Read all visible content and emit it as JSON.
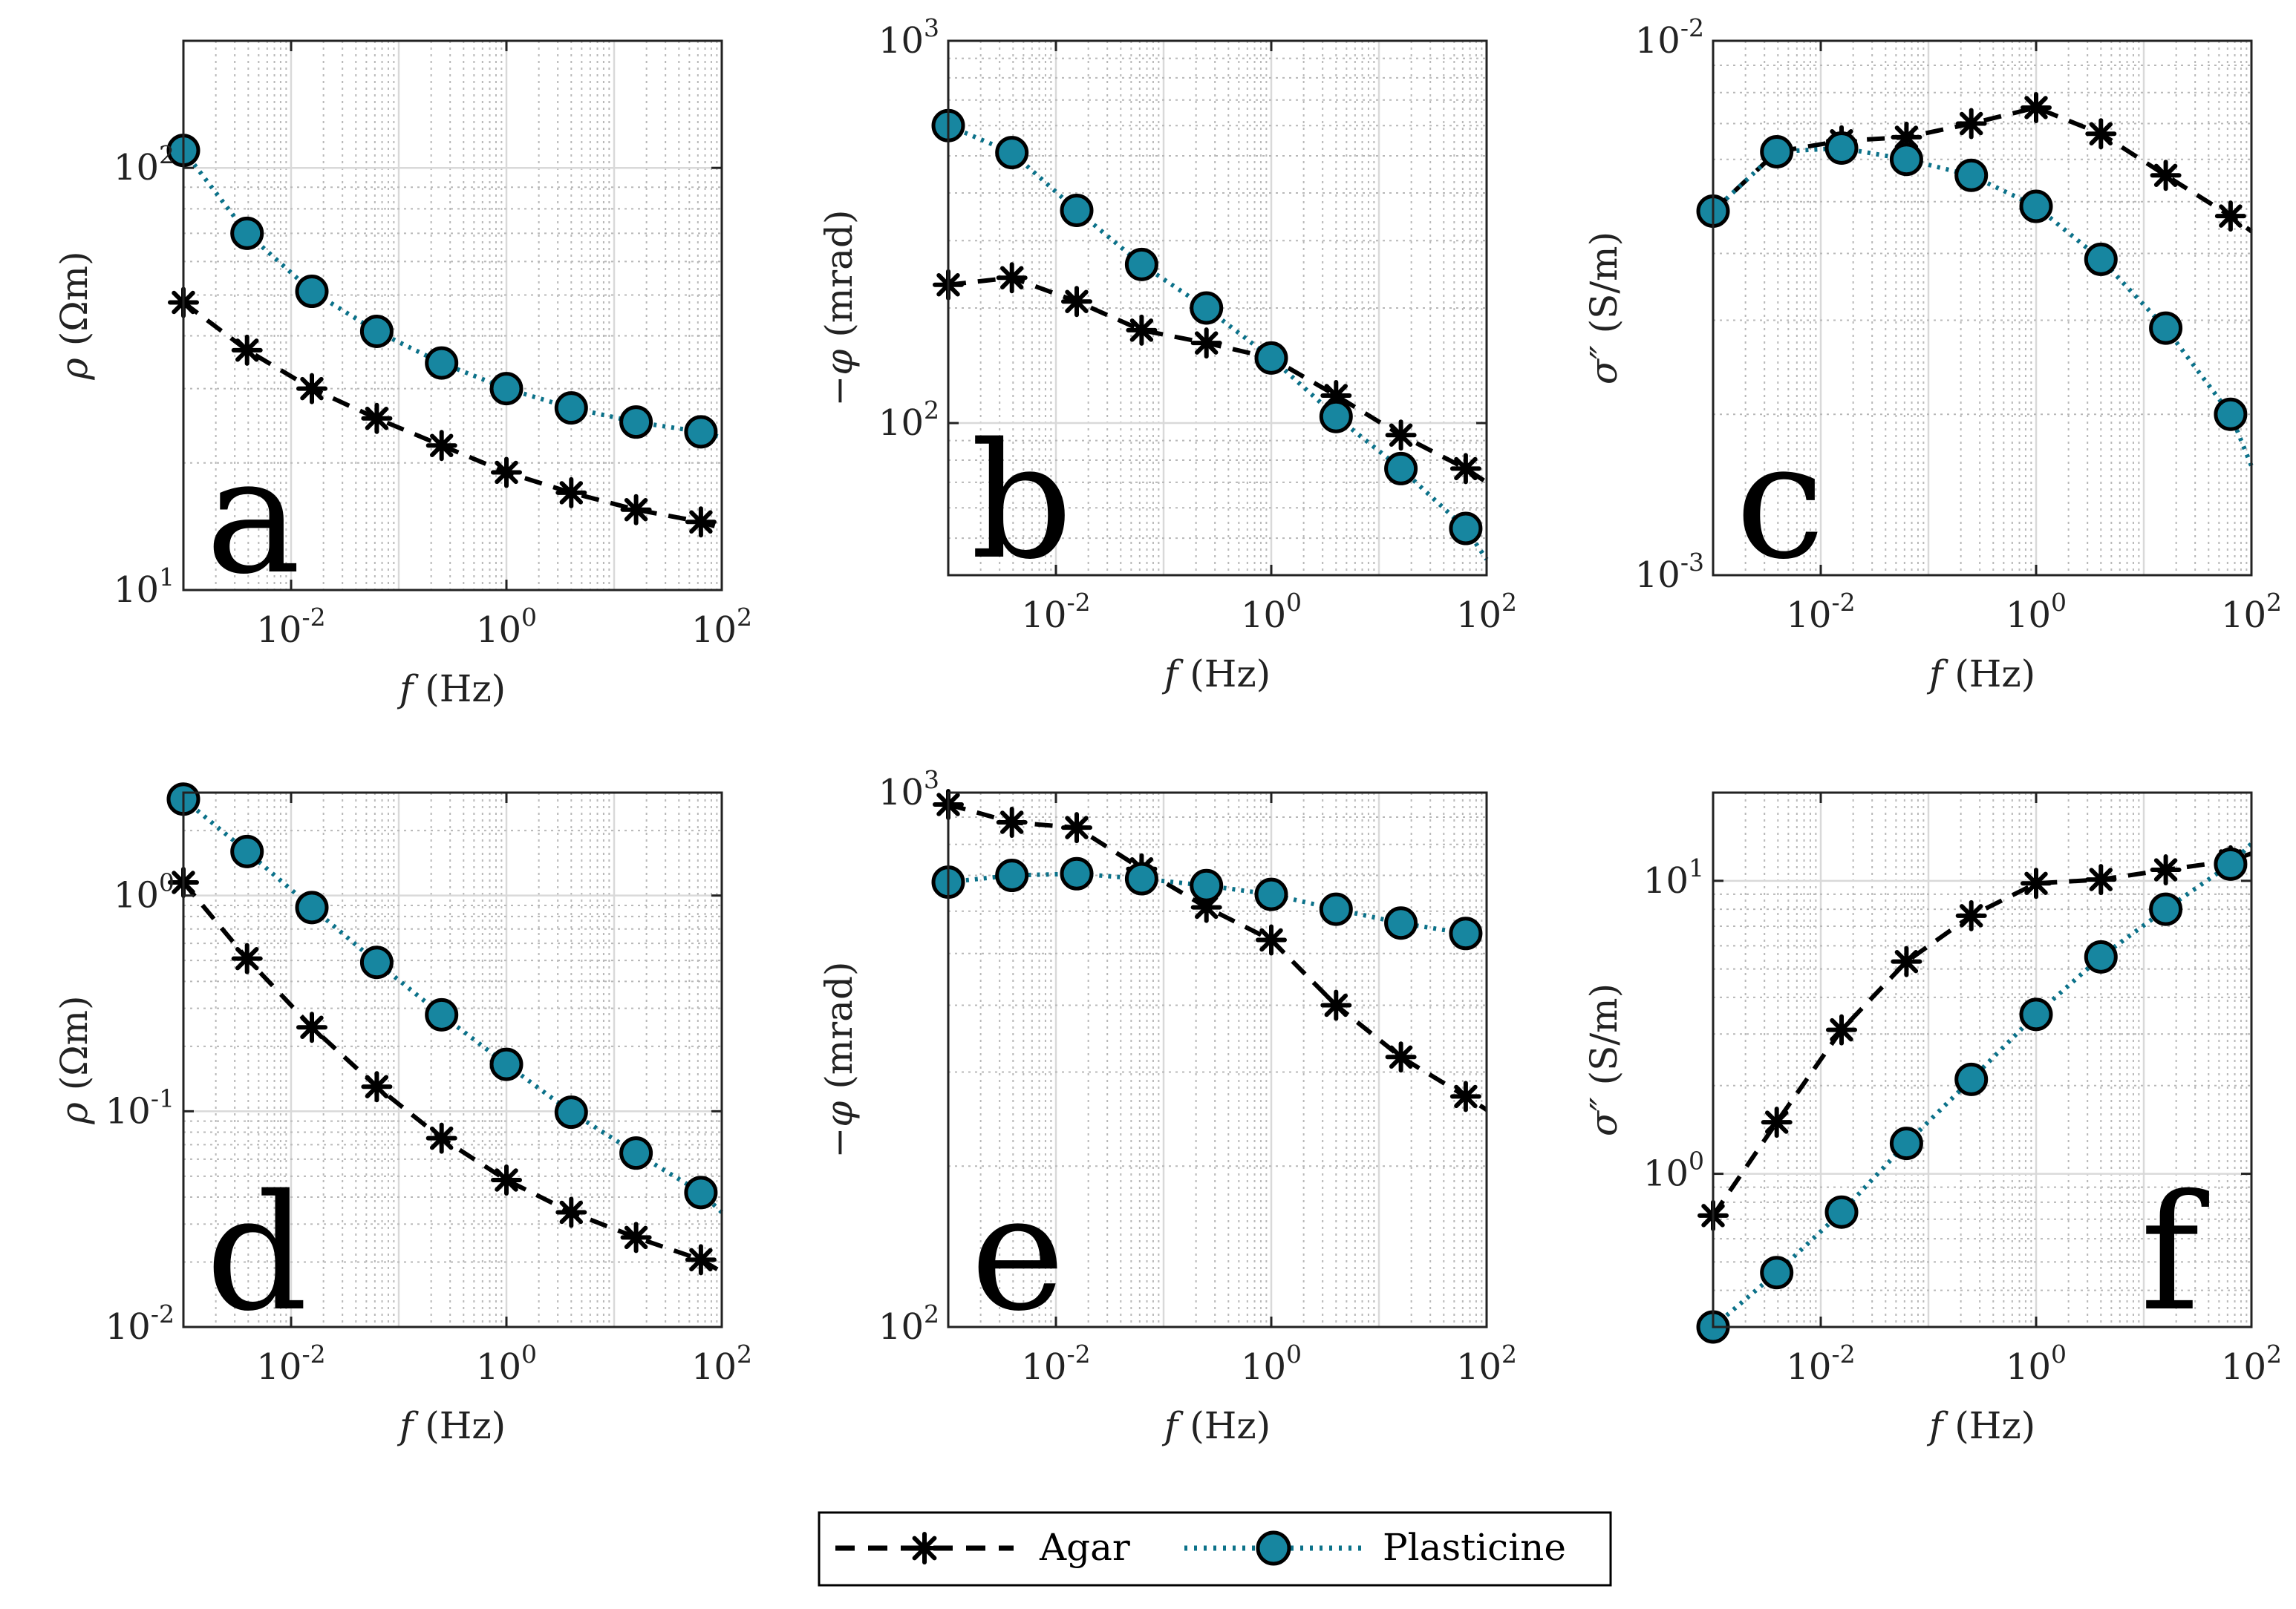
{
  "figure": {
    "legend": [
      {
        "label": "Agar",
        "style": "agar"
      },
      {
        "label": "Plasticine",
        "style": "plasticine"
      }
    ]
  },
  "styles": {
    "agar": {
      "color": "#000000",
      "line": "dashed",
      "marker": "asterisk"
    },
    "plasticine": {
      "color": "#0B7189",
      "fill": "#1786A0",
      "line": "dotted",
      "marker": "circle"
    }
  },
  "chart_data": [
    {
      "id": "a",
      "type": "line",
      "panel_label": "a",
      "xlabel_var": "f",
      "xlabel_unit": "(Hz)",
      "ylabel_var": "ρ",
      "ylabel_unit": "(Ωm)",
      "xlim": [
        0.001,
        100
      ],
      "ylim": [
        10,
        200
      ],
      "xscale": "log",
      "yscale": "log",
      "xticks": [
        {
          "base": "10",
          "exp": "-2",
          "value": 0.01
        },
        {
          "base": "10",
          "exp": "0",
          "value": 1
        },
        {
          "base": "10",
          "exp": "2",
          "value": 100
        }
      ],
      "yticks": [
        {
          "base": "10",
          "exp": "1",
          "value": 10
        },
        {
          "base": "10",
          "exp": "2",
          "value": 100
        }
      ],
      "grid": true,
      "series": [
        {
          "name": "Agar",
          "style": "agar",
          "x": [
            0.001,
            0.0039,
            0.0156,
            0.0625,
            0.25,
            1,
            4,
            16,
            64
          ],
          "y": [
            48,
            37,
            30,
            25.5,
            22,
            19,
            17,
            15.5,
            14.5
          ],
          "tail": [
            100,
            14
          ]
        },
        {
          "name": "Plasticine",
          "style": "plasticine",
          "x": [
            0.001,
            0.0039,
            0.0156,
            0.0625,
            0.25,
            1,
            4,
            16,
            64
          ],
          "y": [
            110,
            70,
            51,
            41,
            34.5,
            30,
            27,
            25,
            23.7
          ],
          "tail": [
            100,
            23
          ]
        }
      ]
    },
    {
      "id": "b",
      "type": "line",
      "panel_label": "b",
      "xlabel_var": "f",
      "xlabel_unit": "(Hz)",
      "ylabel_var": "−φ",
      "ylabel_unit": "(mrad)",
      "xlim": [
        0.001,
        100
      ],
      "ylim": [
        40,
        1000
      ],
      "xscale": "log",
      "yscale": "log",
      "xticks": [
        {
          "base": "10",
          "exp": "-2",
          "value": 0.01
        },
        {
          "base": "10",
          "exp": "0",
          "value": 1
        },
        {
          "base": "10",
          "exp": "2",
          "value": 100
        }
      ],
      "yticks": [
        {
          "base": "10",
          "exp": "2",
          "value": 100
        },
        {
          "base": "10",
          "exp": "3",
          "value": 1000
        }
      ],
      "grid": true,
      "series": [
        {
          "name": "Agar",
          "style": "agar",
          "x": [
            0.001,
            0.0039,
            0.0156,
            0.0625,
            0.25,
            1,
            4,
            16,
            64
          ],
          "y": [
            230,
            240,
            208,
            175,
            162,
            148,
            118,
            93,
            76
          ],
          "tail": [
            100,
            70
          ]
        },
        {
          "name": "Plasticine",
          "style": "plasticine",
          "x": [
            0.001,
            0.0039,
            0.0156,
            0.0625,
            0.25,
            1,
            4,
            16,
            64
          ],
          "y": [
            600,
            510,
            360,
            260,
            200,
            148,
            104,
            76,
            53
          ],
          "tail": [
            100,
            44
          ]
        }
      ]
    },
    {
      "id": "c",
      "type": "line",
      "panel_label": "c",
      "xlabel_var": "f",
      "xlabel_unit": "(Hz)",
      "ylabel_var": "σ″",
      "ylabel_unit": "(S/m)",
      "xlim": [
        0.001,
        100
      ],
      "ylim": [
        0.001,
        0.01
      ],
      "xscale": "log",
      "yscale": "log",
      "xticks": [
        {
          "base": "10",
          "exp": "-2",
          "value": 0.01
        },
        {
          "base": "10",
          "exp": "0",
          "value": 1
        },
        {
          "base": "10",
          "exp": "2",
          "value": 100
        }
      ],
      "yticks": [
        {
          "base": "10",
          "exp": "-3",
          "value": 0.001
        },
        {
          "base": "10",
          "exp": "-2",
          "value": 0.01
        }
      ],
      "grid": true,
      "series": [
        {
          "name": "Agar",
          "style": "agar",
          "x": [
            0.001,
            0.0039,
            0.0156,
            0.0625,
            0.25,
            1,
            4,
            16,
            64
          ],
          "y": [
            0.0048,
            0.0062,
            0.0065,
            0.0066,
            0.007,
            0.0075,
            0.0067,
            0.0056,
            0.0047
          ],
          "tail": [
            100,
            0.0044
          ]
        },
        {
          "name": "Plasticine",
          "style": "plasticine",
          "x": [
            0.001,
            0.0039,
            0.0156,
            0.0625,
            0.25,
            1,
            4,
            16,
            64
          ],
          "y": [
            0.0048,
            0.0062,
            0.0063,
            0.006,
            0.0056,
            0.0049,
            0.0039,
            0.0029,
            0.002
          ],
          "tail": [
            100,
            0.0016
          ]
        }
      ]
    },
    {
      "id": "d",
      "type": "line",
      "panel_label": "d",
      "xlabel_var": "f",
      "xlabel_unit": "(Hz)",
      "ylabel_var": "ρ",
      "ylabel_unit": "(Ωm)",
      "xlim": [
        0.001,
        100
      ],
      "ylim": [
        0.01,
        3
      ],
      "xscale": "log",
      "yscale": "log",
      "xticks": [
        {
          "base": "10",
          "exp": "-2",
          "value": 0.01
        },
        {
          "base": "10",
          "exp": "0",
          "value": 1
        },
        {
          "base": "10",
          "exp": "2",
          "value": 100
        }
      ],
      "yticks": [
        {
          "base": "10",
          "exp": "-2",
          "value": 0.01
        },
        {
          "base": "10",
          "exp": "-1",
          "value": 0.1
        },
        {
          "base": "10",
          "exp": "0",
          "value": 1
        }
      ],
      "grid": true,
      "series": [
        {
          "name": "Agar",
          "style": "agar",
          "x": [
            0.001,
            0.0039,
            0.0156,
            0.0625,
            0.25,
            1,
            4,
            16,
            64
          ],
          "y": [
            1.15,
            0.51,
            0.245,
            0.13,
            0.075,
            0.048,
            0.034,
            0.026,
            0.0205
          ],
          "tail": [
            100,
            0.018
          ]
        },
        {
          "name": "Plasticine",
          "style": "plasticine",
          "x": [
            0.001,
            0.0039,
            0.0156,
            0.0625,
            0.25,
            1,
            4,
            16,
            64
          ],
          "y": [
            2.8,
            1.6,
            0.88,
            0.49,
            0.28,
            0.165,
            0.099,
            0.064,
            0.042
          ],
          "tail": [
            100,
            0.034
          ]
        }
      ]
    },
    {
      "id": "e",
      "type": "line",
      "panel_label": "e",
      "xlabel_var": "f",
      "xlabel_unit": "(Hz)",
      "ylabel_var": "−φ",
      "ylabel_unit": "(mrad)",
      "xlim": [
        0.001,
        100
      ],
      "ylim": [
        100,
        1000
      ],
      "xscale": "log",
      "yscale": "log",
      "xticks": [
        {
          "base": "10",
          "exp": "-2",
          "value": 0.01
        },
        {
          "base": "10",
          "exp": "0",
          "value": 1
        },
        {
          "base": "10",
          "exp": "2",
          "value": 100
        }
      ],
      "yticks": [
        {
          "base": "10",
          "exp": "2",
          "value": 100
        },
        {
          "base": "10",
          "exp": "3",
          "value": 1000
        }
      ],
      "grid": true,
      "series": [
        {
          "name": "Agar",
          "style": "agar",
          "x": [
            0.001,
            0.0039,
            0.0156,
            0.0625,
            0.25,
            1,
            4,
            16,
            64
          ],
          "y": [
            950,
            880,
            860,
            720,
            610,
            530,
            400,
            320,
            270
          ],
          "tail": [
            100,
            255
          ]
        },
        {
          "name": "Plasticine",
          "style": "plasticine",
          "x": [
            0.001,
            0.0039,
            0.0156,
            0.0625,
            0.25,
            1,
            4,
            16,
            64
          ],
          "y": [
            680,
            700,
            705,
            690,
            670,
            645,
            605,
            570,
            545
          ],
          "tail": [
            100,
            535
          ]
        }
      ]
    },
    {
      "id": "f",
      "type": "line",
      "panel_label": "f",
      "xlabel_var": "f",
      "xlabel_unit": "(Hz)",
      "ylabel_var": "σ″",
      "ylabel_unit": "(S/m)",
      "xlim": [
        0.001,
        100
      ],
      "ylim": [
        0.3,
        20
      ],
      "xscale": "log",
      "yscale": "log",
      "xticks": [
        {
          "base": "10",
          "exp": "-2",
          "value": 0.01
        },
        {
          "base": "10",
          "exp": "0",
          "value": 1
        },
        {
          "base": "10",
          "exp": "2",
          "value": 100
        }
      ],
      "yticks": [
        {
          "base": "10",
          "exp": "0",
          "value": 1
        },
        {
          "base": "10",
          "exp": "1",
          "value": 10
        }
      ],
      "grid": true,
      "series": [
        {
          "name": "Agar",
          "style": "agar",
          "x": [
            0.001,
            0.0039,
            0.0156,
            0.0625,
            0.25,
            1,
            4,
            16,
            64
          ],
          "y": [
            0.72,
            1.5,
            3.1,
            5.3,
            7.6,
            9.8,
            10.1,
            10.9,
            11.7
          ],
          "tail": [
            100,
            12.4
          ]
        },
        {
          "name": "Plasticine",
          "style": "plasticine",
          "x": [
            0.001,
            0.0039,
            0.0156,
            0.0625,
            0.25,
            1,
            4,
            16,
            64
          ],
          "y": [
            0.3,
            0.46,
            0.74,
            1.27,
            2.1,
            3.5,
            5.5,
            8,
            11.4
          ],
          "tail": [
            100,
            13.4
          ]
        }
      ]
    }
  ]
}
